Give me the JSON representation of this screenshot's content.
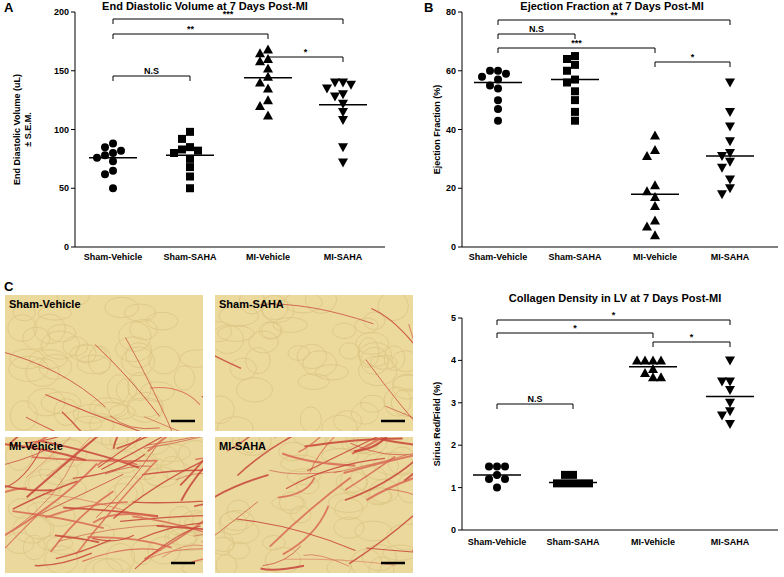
{
  "chart_data": [
    {
      "type": "dot_plot",
      "panel_label": "A",
      "title": "End Diastolic Volume at 7 Days Post-MI",
      "y_label": [
        "End Diastolic Volume (uL)",
        "± S.E.M."
      ],
      "ylim": [
        0,
        200
      ],
      "yticks": [
        0,
        50,
        100,
        150,
        200
      ],
      "grid": false,
      "series": [
        {
          "name": "Sham-Vehicle",
          "marker": "circle",
          "color": "#000000",
          "values": [
            88,
            85,
            82,
            80,
            78,
            76,
            73,
            65,
            62,
            50
          ],
          "mean": 76
        },
        {
          "name": "Sham-SAHA",
          "marker": "square",
          "color": "#000000",
          "values": [
            98,
            92,
            85,
            83,
            82,
            80,
            75,
            68,
            60,
            50
          ],
          "mean": 78
        },
        {
          "name": "MI-Vehicle",
          "marker": "triangle-up",
          "color": "#000000",
          "values": [
            168,
            165,
            160,
            158,
            152,
            145,
            140,
            135,
            125,
            120,
            112
          ],
          "mean": 144
        },
        {
          "name": "MI-SAHA",
          "marker": "triangle-down",
          "color": "#000000",
          "values": [
            140,
            140,
            138,
            135,
            130,
            128,
            122,
            115,
            108,
            85,
            72
          ],
          "mean": 121
        }
      ],
      "comparisons": [
        {
          "pair": [
            "Sham-Vehicle",
            "MI-SAHA"
          ],
          "label": "***"
        },
        {
          "pair": [
            "Sham-Vehicle",
            "MI-Vehicle"
          ],
          "label": "**"
        },
        {
          "pair": [
            "MI-Vehicle",
            "MI-SAHA"
          ],
          "label": "*"
        },
        {
          "pair": [
            "Sham-Vehicle",
            "Sham-SAHA"
          ],
          "label": "N.S"
        }
      ]
    },
    {
      "type": "dot_plot",
      "panel_label": "B",
      "title": "Ejection Fraction at 7 Days Post-MI",
      "y_label": "Ejection Fraction (%)",
      "ylim": [
        0,
        80
      ],
      "yticks": [
        0,
        20,
        40,
        60,
        80
      ],
      "grid": false,
      "series": [
        {
          "name": "Sham-Vehicle",
          "marker": "circle",
          "color": "#000000",
          "values": [
            60,
            60,
            59,
            58,
            57,
            55,
            54,
            50,
            47,
            43
          ],
          "mean": 56
        },
        {
          "name": "Sham-SAHA",
          "marker": "square",
          "color": "#000000",
          "values": [
            65,
            64,
            62,
            60,
            57,
            56,
            53,
            50,
            46,
            43
          ],
          "mean": 57
        },
        {
          "name": "MI-Vehicle",
          "marker": "triangle-up",
          "color": "#000000",
          "values": [
            38,
            33,
            31,
            21,
            19,
            17,
            14,
            9,
            7,
            4
          ],
          "mean": 18
        },
        {
          "name": "MI-SAHA",
          "marker": "triangle-down",
          "color": "#000000",
          "values": [
            56,
            46,
            41,
            36,
            32,
            31,
            29,
            27,
            23,
            20,
            18
          ],
          "mean": 31
        }
      ],
      "comparisons": [
        {
          "pair": [
            "Sham-Vehicle",
            "MI-SAHA"
          ],
          "label": "**"
        },
        {
          "pair": [
            "Sham-Vehicle",
            "Sham-SAHA"
          ],
          "label": "N.S"
        },
        {
          "pair": [
            "Sham-Vehicle",
            "MI-Vehicle"
          ],
          "label": "***"
        },
        {
          "pair": [
            "MI-Vehicle",
            "MI-SAHA"
          ],
          "label": "*"
        }
      ]
    },
    {
      "type": "dot_plot",
      "title": "Collagen Density in LV at 7 Days Post-MI",
      "y_label": "Sirius Red/Field (%)",
      "ylim": [
        0,
        5
      ],
      "yticks": [
        0,
        1,
        2,
        3,
        4,
        5
      ],
      "grid": false,
      "series": [
        {
          "name": "Sham-Vehicle",
          "marker": "circle",
          "color": "#000000",
          "values": [
            1.5,
            1.5,
            1.5,
            1.3,
            1.2,
            1.2,
            1.0
          ],
          "mean": 1.3
        },
        {
          "name": "Sham-SAHA",
          "marker": "square",
          "color": "#000000",
          "values": [
            1.3,
            1.3,
            1.1,
            1.1,
            1.1,
            1.1,
            1.1
          ],
          "mean": 1.12
        },
        {
          "name": "MI-Vehicle",
          "marker": "triangle-up",
          "color": "#000000",
          "values": [
            4.0,
            4.0,
            4.0,
            4.0,
            3.8,
            3.7,
            3.6,
            3.6
          ],
          "mean": 3.85
        },
        {
          "name": "MI-SAHA",
          "marker": "triangle-down",
          "color": "#000000",
          "values": [
            4.0,
            3.5,
            3.5,
            3.3,
            3.0,
            2.8,
            2.7,
            2.5
          ],
          "mean": 3.15
        }
      ],
      "comparisons": [
        {
          "pair": [
            "Sham-Vehicle",
            "MI-SAHA"
          ],
          "label": "*"
        },
        {
          "pair": [
            "Sham-Vehicle",
            "MI-Vehicle"
          ],
          "label": "*"
        },
        {
          "pair": [
            "MI-Vehicle",
            "MI-SAHA"
          ],
          "label": "*"
        },
        {
          "pair": [
            "Sham-Vehicle",
            "Sham-SAHA"
          ],
          "label": "N.S"
        }
      ]
    }
  ],
  "micrographs": {
    "panel_label": "C",
    "labels": [
      "Sham-Vehicle",
      "Sham-SAHA",
      "MI-Vehicle",
      "MI-SAHA"
    ]
  }
}
